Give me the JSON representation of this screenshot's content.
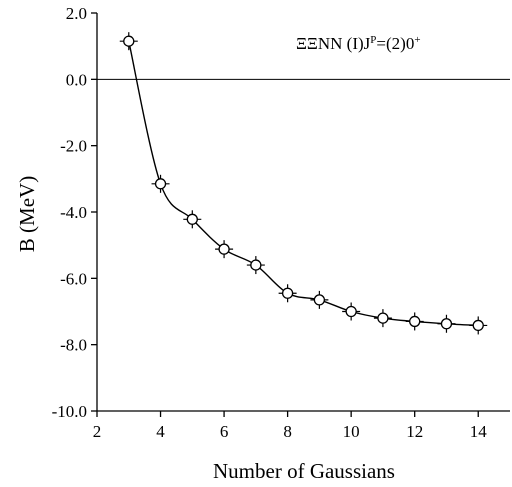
{
  "chart_data": {
    "type": "line",
    "title": "",
    "xlabel": "Number of Gaussians",
    "ylabel": "B (MeV)",
    "xlim": [
      2,
      15
    ],
    "ylim": [
      -10.0,
      2.0
    ],
    "x_ticks": [
      2,
      4,
      6,
      8,
      10,
      12,
      14
    ],
    "x_tick_labels": [
      "2",
      "4",
      "6",
      "8",
      "10",
      "12",
      "14"
    ],
    "y_ticks": [
      2.0,
      0.0,
      -2.0,
      -4.0,
      -6.0,
      -8.0,
      -10.0
    ],
    "y_tick_labels": [
      "2.0",
      "0.0",
      "-2.0",
      "-4.0",
      "-6.0",
      "-8.0",
      "-10.0"
    ],
    "reference_line_y": 0.0,
    "annotation": {
      "main": "ΞΞNN  (I)J",
      "sup": "P",
      "main2": "=(2)0",
      "sup2": "+"
    },
    "marker": "open-circle-with-errorbar",
    "grid": false,
    "series": [
      {
        "x": [
          3,
          4,
          5,
          6,
          7,
          8,
          9,
          10,
          11,
          12,
          13,
          14
        ],
        "values": [
          1.15,
          -3.15,
          -4.22,
          -5.12,
          -5.6,
          -6.45,
          -6.65,
          -7.0,
          -7.2,
          -7.3,
          -7.37,
          -7.42
        ]
      }
    ]
  }
}
